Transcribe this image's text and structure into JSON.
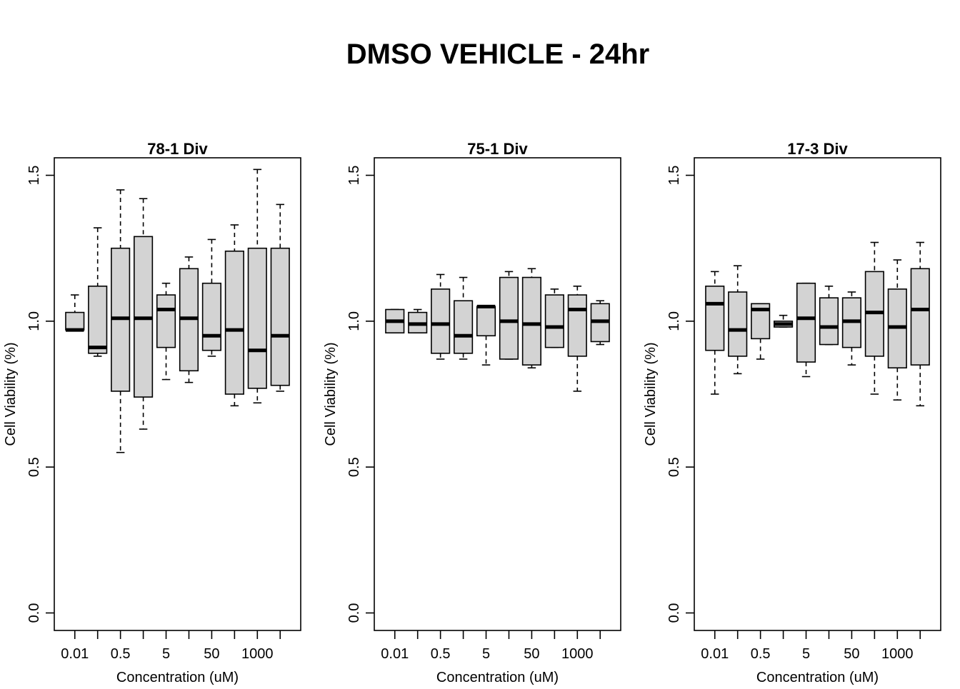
{
  "title": "DMSO VEHICLE - 24hr",
  "colors": {
    "box_fill": "#d3d3d3",
    "stroke": "#000000",
    "background": "#ffffff"
  },
  "chart_data": [
    {
      "type": "boxplot",
      "title": "78-1 Div",
      "xlabel": "Concentration (uM)",
      "ylabel": "Cell Viability (%)",
      "ylim": [
        -0.06,
        1.56
      ],
      "yticks": [
        0.0,
        0.5,
        1.0,
        1.5
      ],
      "ytick_labels": [
        "0.0",
        "0.5",
        "1.0",
        "1.5"
      ],
      "x_positions": 10,
      "xtick_labels": [
        {
          "pos": 1,
          "label": "0.01"
        },
        {
          "pos": 3,
          "label": "0.5"
        },
        {
          "pos": 5,
          "label": "5"
        },
        {
          "pos": 7,
          "label": "50"
        },
        {
          "pos": 9,
          "label": "1000"
        }
      ],
      "boxes": [
        {
          "min": 0.97,
          "q1": 0.97,
          "median": 0.97,
          "q3": 1.03,
          "max": 1.09
        },
        {
          "min": 0.88,
          "q1": 0.89,
          "median": 0.91,
          "q3": 1.12,
          "max": 1.32
        },
        {
          "min": 0.55,
          "q1": 0.76,
          "median": 1.01,
          "q3": 1.25,
          "max": 1.45
        },
        {
          "min": 0.63,
          "q1": 0.74,
          "median": 1.01,
          "q3": 1.29,
          "max": 1.42
        },
        {
          "min": 0.8,
          "q1": 0.91,
          "median": 1.04,
          "q3": 1.09,
          "max": 1.13
        },
        {
          "min": 0.79,
          "q1": 0.83,
          "median": 1.01,
          "q3": 1.18,
          "max": 1.22
        },
        {
          "min": 0.88,
          "q1": 0.9,
          "median": 0.95,
          "q3": 1.13,
          "max": 1.28
        },
        {
          "min": 0.71,
          "q1": 0.75,
          "median": 0.97,
          "q3": 1.24,
          "max": 1.33
        },
        {
          "min": 0.72,
          "q1": 0.77,
          "median": 0.9,
          "q3": 1.25,
          "max": 1.52
        },
        {
          "min": 0.76,
          "q1": 0.78,
          "median": 0.95,
          "q3": 1.25,
          "max": 1.4
        }
      ]
    },
    {
      "type": "boxplot",
      "title": "75-1 Div",
      "xlabel": "Concentration (uM)",
      "ylabel": "Cell Viability (%)",
      "ylim": [
        -0.06,
        1.56
      ],
      "yticks": [
        0.0,
        0.5,
        1.0,
        1.5
      ],
      "ytick_labels": [
        "0.0",
        "0.5",
        "1.0",
        "1.5"
      ],
      "x_positions": 10,
      "xtick_labels": [
        {
          "pos": 1,
          "label": "0.01"
        },
        {
          "pos": 3,
          "label": "0.5"
        },
        {
          "pos": 5,
          "label": "5"
        },
        {
          "pos": 7,
          "label": "50"
        },
        {
          "pos": 9,
          "label": "1000"
        }
      ],
      "boxes": [
        {
          "min": 0.96,
          "q1": 0.96,
          "median": 1.0,
          "q3": 1.04,
          "max": 1.04
        },
        {
          "min": 0.96,
          "q1": 0.96,
          "median": 0.99,
          "q3": 1.03,
          "max": 1.04
        },
        {
          "min": 0.87,
          "q1": 0.89,
          "median": 0.99,
          "q3": 1.11,
          "max": 1.16
        },
        {
          "min": 0.87,
          "q1": 0.89,
          "median": 0.95,
          "q3": 1.07,
          "max": 1.15
        },
        {
          "min": 0.85,
          "q1": 0.95,
          "median": 1.05,
          "q3": 1.05,
          "max": 1.05
        },
        {
          "min": 0.87,
          "q1": 0.87,
          "median": 1.0,
          "q3": 1.15,
          "max": 1.17
        },
        {
          "min": 0.84,
          "q1": 0.85,
          "median": 0.99,
          "q3": 1.15,
          "max": 1.18
        },
        {
          "min": 0.91,
          "q1": 0.91,
          "median": 0.98,
          "q3": 1.09,
          "max": 1.11
        },
        {
          "min": 0.76,
          "q1": 0.88,
          "median": 1.04,
          "q3": 1.09,
          "max": 1.12
        },
        {
          "min": 0.92,
          "q1": 0.93,
          "median": 1.0,
          "q3": 1.06,
          "max": 1.07
        }
      ]
    },
    {
      "type": "boxplot",
      "title": "17-3 Div",
      "xlabel": "Concentration (uM)",
      "ylabel": "Cell Viability (%)",
      "ylim": [
        -0.06,
        1.56
      ],
      "yticks": [
        0.0,
        0.5,
        1.0,
        1.5
      ],
      "ytick_labels": [
        "0.0",
        "0.5",
        "1.0",
        "1.5"
      ],
      "x_positions": 10,
      "xtick_labels": [
        {
          "pos": 1,
          "label": "0.01"
        },
        {
          "pos": 3,
          "label": "0.5"
        },
        {
          "pos": 5,
          "label": "5"
        },
        {
          "pos": 7,
          "label": "50"
        },
        {
          "pos": 9,
          "label": "1000"
        }
      ],
      "boxes": [
        {
          "min": 0.75,
          "q1": 0.9,
          "median": 1.06,
          "q3": 1.12,
          "max": 1.17
        },
        {
          "min": 0.82,
          "q1": 0.88,
          "median": 0.97,
          "q3": 1.1,
          "max": 1.19
        },
        {
          "min": 0.87,
          "q1": 0.94,
          "median": 1.04,
          "q3": 1.06,
          "max": 1.06
        },
        {
          "min": 0.98,
          "q1": 0.98,
          "median": 0.99,
          "q3": 1.0,
          "max": 1.02
        },
        {
          "min": 0.81,
          "q1": 0.86,
          "median": 1.01,
          "q3": 1.13,
          "max": 1.13
        },
        {
          "min": 0.92,
          "q1": 0.92,
          "median": 0.98,
          "q3": 1.08,
          "max": 1.12
        },
        {
          "min": 0.85,
          "q1": 0.91,
          "median": 1.0,
          "q3": 1.08,
          "max": 1.1
        },
        {
          "min": 0.75,
          "q1": 0.88,
          "median": 1.03,
          "q3": 1.17,
          "max": 1.27
        },
        {
          "min": 0.73,
          "q1": 0.84,
          "median": 0.98,
          "q3": 1.11,
          "max": 1.21
        },
        {
          "min": 0.71,
          "q1": 0.85,
          "median": 1.04,
          "q3": 1.18,
          "max": 1.27
        }
      ]
    }
  ]
}
